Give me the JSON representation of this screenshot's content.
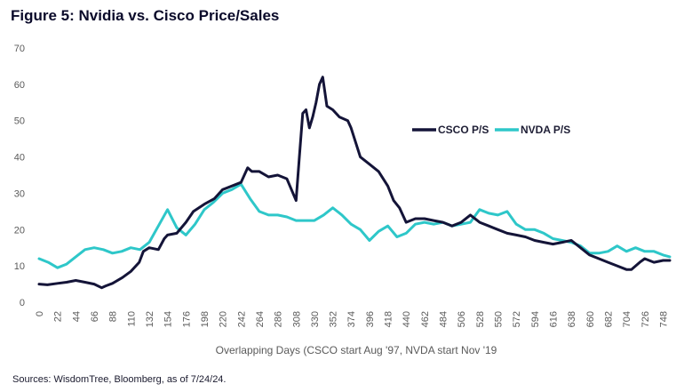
{
  "title": "Figure 5: Nvidia vs. Cisco Price/Sales",
  "source": "Sources: WisdomTree, Bloomberg, as of 7/24/24.",
  "chart_data": {
    "type": "line",
    "xlabel": "Overlapping Days (CSCO start Aug '97, NVDA start Nov '19",
    "ylabel": "",
    "xlim": [
      0,
      756
    ],
    "ylim": [
      0,
      70
    ],
    "yticks": [
      "0",
      "10",
      "20",
      "30",
      "40",
      "50",
      "60",
      "70"
    ],
    "xticks": [
      "0",
      "22",
      "44",
      "66",
      "88",
      "110",
      "132",
      "154",
      "176",
      "198",
      "220",
      "242",
      "264",
      "286",
      "308",
      "330",
      "352",
      "374",
      "396",
      "418",
      "440",
      "462",
      "484",
      "506",
      "528",
      "550",
      "572",
      "594",
      "616",
      "638",
      "660",
      "682",
      "704",
      "726",
      "748"
    ],
    "grid": false,
    "legend": "right",
    "series": [
      {
        "name": "CSCO P/S",
        "color": "#141438",
        "x": [
          0,
          10,
          22,
          33,
          44,
          55,
          66,
          75,
          80,
          88,
          100,
          110,
          120,
          125,
          132,
          143,
          150,
          154,
          165,
          176,
          185,
          198,
          210,
          220,
          231,
          242,
          250,
          255,
          264,
          275,
          286,
          297,
          308,
          312,
          316,
          320,
          324,
          328,
          332,
          336,
          340,
          345,
          352,
          360,
          370,
          374,
          385,
          396,
          407,
          418,
          425,
          432,
          440,
          451,
          462,
          473,
          484,
          495,
          506,
          517,
          528,
          539,
          550,
          561,
          572,
          583,
          594,
          605,
          616,
          627,
          638,
          649,
          660,
          671,
          682,
          693,
          704,
          710,
          720,
          726,
          737,
          748,
          756
        ],
        "values": [
          5,
          4.8,
          5.2,
          5.5,
          6.0,
          5.5,
          5.0,
          4.0,
          4.5,
          5.2,
          6.8,
          8.5,
          11.0,
          14.0,
          15.0,
          14.5,
          17.5,
          18.5,
          19.0,
          22.0,
          25.0,
          27.0,
          28.5,
          31.0,
          32.0,
          33.0,
          37.0,
          36.0,
          36.0,
          34.5,
          35.0,
          34.0,
          28.0,
          40.0,
          52.0,
          53.0,
          48.0,
          51.0,
          55.0,
          60.0,
          62.0,
          54.0,
          53.0,
          51.0,
          50.0,
          48.0,
          40.0,
          38.0,
          36.0,
          32.0,
          28.0,
          26.0,
          22.0,
          23.0,
          23.0,
          22.5,
          22.0,
          21.0,
          22.0,
          24.0,
          22.0,
          21.0,
          20.0,
          19.0,
          18.5,
          18.0,
          17.0,
          16.5,
          16.0,
          16.5,
          17.0,
          15.0,
          13.0,
          12.0,
          11.0,
          10.0,
          9.0,
          9.0,
          11.0,
          12.0,
          11.0,
          11.5,
          11.5
        ]
      },
      {
        "name": "NVDA P/S",
        "color": "#2ec7c9",
        "x": [
          0,
          11,
          22,
          33,
          44,
          55,
          66,
          77,
          88,
          99,
          110,
          121,
          132,
          143,
          154,
          165,
          176,
          187,
          198,
          209,
          220,
          231,
          242,
          253,
          264,
          275,
          286,
          297,
          308,
          319,
          330,
          341,
          352,
          363,
          374,
          385,
          396,
          407,
          418,
          429,
          440,
          451,
          462,
          473,
          484,
          495,
          506,
          517,
          528,
          539,
          550,
          561,
          572,
          583,
          594,
          605,
          616,
          627,
          638,
          649,
          660,
          671,
          682,
          693,
          704,
          715,
          726,
          737,
          748,
          756
        ],
        "values": [
          12,
          11,
          9.5,
          10.5,
          12.5,
          14.5,
          15,
          14.5,
          13.5,
          14,
          15,
          14.5,
          16.5,
          21,
          25.5,
          20.5,
          18.5,
          21.5,
          25.5,
          27.5,
          30,
          31,
          32.5,
          28.5,
          25,
          24,
          24,
          23.5,
          22.5,
          22.5,
          22.5,
          24,
          26,
          24,
          21.5,
          20,
          17,
          19.5,
          21,
          18,
          19,
          21.5,
          22,
          21.5,
          22,
          21,
          21.5,
          22,
          25.5,
          24.5,
          24,
          25,
          21.5,
          20,
          20,
          19,
          17.5,
          17,
          16.5,
          15.5,
          13.5,
          13.5,
          14,
          15.5,
          14,
          15,
          14,
          14,
          13,
          12.5
        ]
      }
    ]
  }
}
